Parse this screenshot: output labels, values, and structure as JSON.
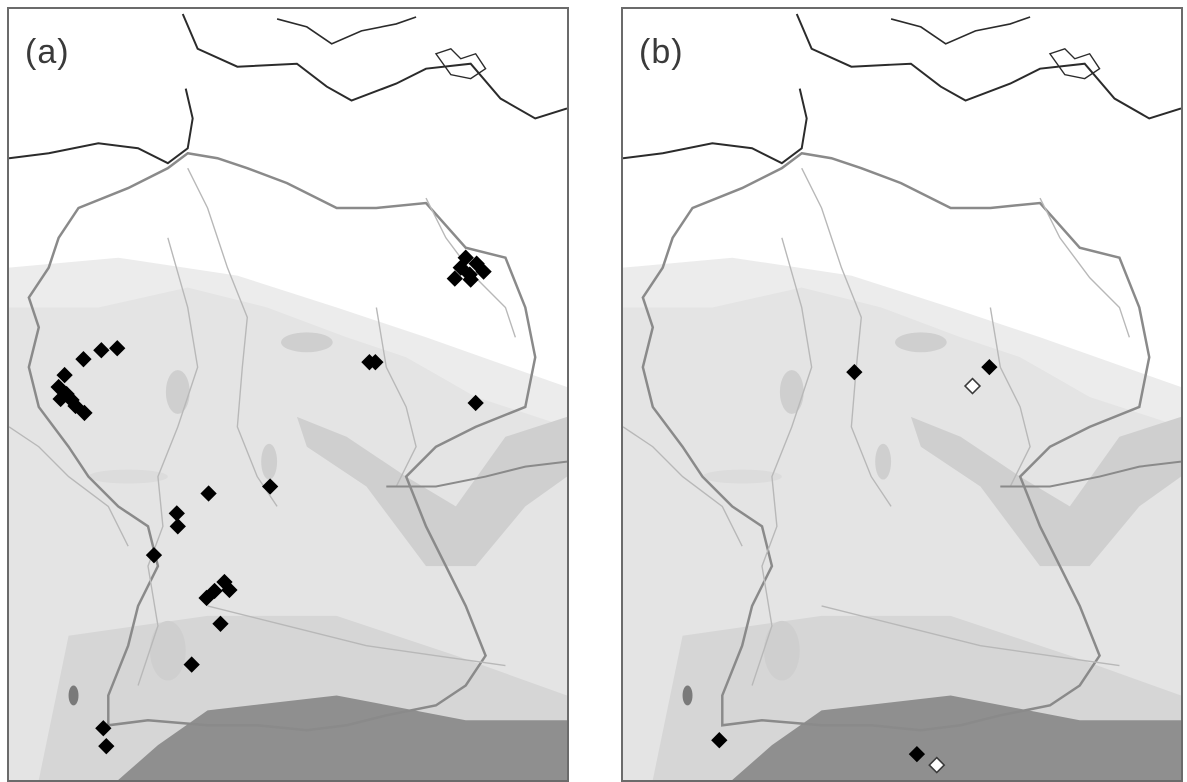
{
  "panels": [
    {
      "label": "(a)",
      "markers": [
        {
          "kind": "filled",
          "pos": [
            460,
            250
          ]
        },
        {
          "kind": "filled",
          "pos": [
            471,
            256
          ]
        },
        {
          "kind": "filled",
          "pos": [
            455,
            260
          ]
        },
        {
          "kind": "filled",
          "pos": [
            464,
            267
          ]
        },
        {
          "kind": "filled",
          "pos": [
            478,
            264
          ]
        },
        {
          "kind": "filled",
          "pos": [
            449,
            271
          ]
        },
        {
          "kind": "filled",
          "pos": [
            465,
            272
          ]
        },
        {
          "kind": "filled",
          "pos": [
            75,
            352
          ]
        },
        {
          "kind": "filled",
          "pos": [
            93,
            343
          ]
        },
        {
          "kind": "filled",
          "pos": [
            109,
            341
          ]
        },
        {
          "kind": "filled",
          "pos": [
            56,
            368
          ]
        },
        {
          "kind": "filled",
          "pos": [
            50,
            380
          ]
        },
        {
          "kind": "filled",
          "pos": [
            58,
            387
          ]
        },
        {
          "kind": "filled",
          "pos": [
            52,
            392
          ]
        },
        {
          "kind": "filled",
          "pos": [
            63,
            393
          ]
        },
        {
          "kind": "filled",
          "pos": [
            67,
            399
          ]
        },
        {
          "kind": "filled",
          "pos": [
            76,
            406
          ]
        },
        {
          "kind": "filled",
          "pos": [
            363,
            355
          ]
        },
        {
          "kind": "filled",
          "pos": [
            369,
            355
          ]
        },
        {
          "kind": "filled",
          "pos": [
            470,
            396
          ]
        },
        {
          "kind": "filled",
          "pos": [
            201,
            487
          ]
        },
        {
          "kind": "filled",
          "pos": [
            263,
            480
          ]
        },
        {
          "kind": "filled",
          "pos": [
            169,
            507
          ]
        },
        {
          "kind": "filled",
          "pos": [
            170,
            520
          ]
        },
        {
          "kind": "filled",
          "pos": [
            146,
            549
          ]
        },
        {
          "kind": "filled",
          "pos": [
            217,
            576
          ]
        },
        {
          "kind": "filled",
          "pos": [
            207,
            585
          ]
        },
        {
          "kind": "filled",
          "pos": [
            222,
            584
          ]
        },
        {
          "kind": "filled",
          "pos": [
            199,
            592
          ]
        },
        {
          "kind": "filled",
          "pos": [
            213,
            618
          ]
        },
        {
          "kind": "filled",
          "pos": [
            184,
            659
          ]
        },
        {
          "kind": "filled",
          "pos": [
            95,
            723
          ]
        },
        {
          "kind": "filled",
          "pos": [
            98,
            741
          ]
        }
      ]
    },
    {
      "label": "(b)",
      "markers": [
        {
          "kind": "filled",
          "pos": [
            233,
            365
          ]
        },
        {
          "kind": "filled",
          "pos": [
            369,
            360
          ]
        },
        {
          "kind": "open",
          "pos": [
            352,
            379
          ]
        },
        {
          "kind": "filled",
          "pos": [
            97,
            735
          ]
        },
        {
          "kind": "filled",
          "pos": [
            296,
            749
          ]
        },
        {
          "kind": "open",
          "pos": [
            316,
            760
          ]
        }
      ]
    }
  ]
}
